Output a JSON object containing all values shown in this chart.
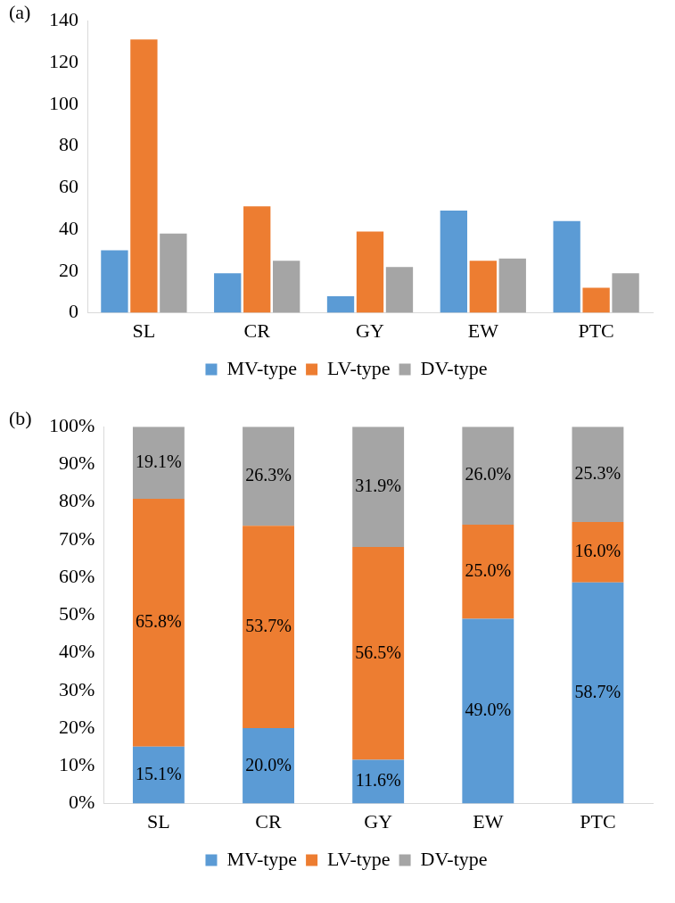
{
  "chart_data": [
    {
      "type": "bar",
      "annotations": [
        "(a)"
      ],
      "categories": [
        "SL",
        "CR",
        "GY",
        "EW",
        "PTC"
      ],
      "series": [
        {
          "name": "MV-type",
          "color": "#5b9bd5",
          "values": [
            30,
            19,
            8,
            49,
            44
          ]
        },
        {
          "name": "LV-type",
          "color": "#ed7d31",
          "values": [
            131,
            51,
            39,
            25,
            12
          ]
        },
        {
          "name": "DV-type",
          "color": "#a5a5a5",
          "values": [
            38,
            25,
            22,
            26,
            19
          ]
        }
      ],
      "ylim": [
        0,
        140
      ],
      "yticks": [
        0,
        20,
        40,
        60,
        80,
        100,
        120,
        140
      ],
      "legend": "bottom"
    },
    {
      "type": "bar",
      "annotations": [
        "(b)"
      ],
      "categories": [
        "SL",
        "CR",
        "GY",
        "EW",
        "PTC"
      ],
      "stacked": true,
      "series": [
        {
          "name": "MV-type",
          "color": "#5b9bd5",
          "values": [
            15.1,
            20.0,
            11.6,
            49.0,
            58.7
          ],
          "value_labels": [
            "15.1%",
            "20.0%",
            "11.6%",
            "49.0%",
            "58.7%"
          ]
        },
        {
          "name": "LV-type",
          "color": "#ed7d31",
          "values": [
            65.8,
            53.7,
            56.5,
            25.0,
            16.0
          ],
          "value_labels": [
            "65.8%",
            "53.7%",
            "56.5%",
            "25.0%",
            "16.0%"
          ]
        },
        {
          "name": "DV-type",
          "color": "#a5a5a5",
          "values": [
            19.1,
            26.3,
            31.9,
            26.0,
            25.3
          ],
          "value_labels": [
            "19.1%",
            "26.3%",
            "31.9%",
            "26.0%",
            "25.3%"
          ]
        }
      ],
      "ylim": [
        0,
        100
      ],
      "yticks": [
        {
          "value": 0,
          "label": "0%"
        },
        {
          "value": 10,
          "label": "10%"
        },
        {
          "value": 20,
          "label": "20%"
        },
        {
          "value": 30,
          "label": "30%"
        },
        {
          "value": 40,
          "label": "40%"
        },
        {
          "value": 50,
          "label": "50%"
        },
        {
          "value": 60,
          "label": "60%"
        },
        {
          "value": 70,
          "label": "70%"
        },
        {
          "value": 80,
          "label": "80%"
        },
        {
          "value": 90,
          "label": "90%"
        },
        {
          "value": 100,
          "label": "100%"
        }
      ],
      "legend": "bottom"
    }
  ]
}
